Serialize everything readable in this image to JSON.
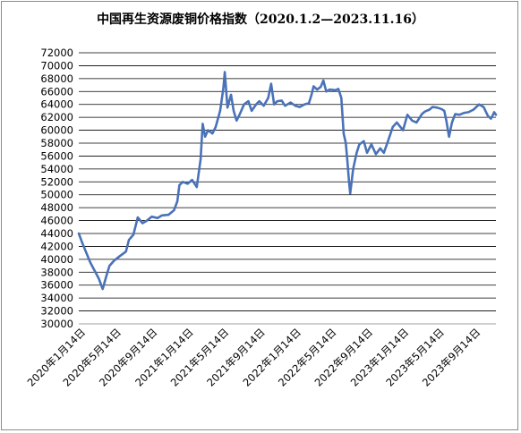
{
  "chart_data": {
    "type": "line",
    "title": "中国再生资源废铜价格指数（2020.1.2—2023.11.16）",
    "xlabel": "",
    "ylabel": "",
    "ylim": [
      30000,
      72000
    ],
    "yticks": [
      30000,
      32000,
      34000,
      36000,
      38000,
      40000,
      42000,
      44000,
      46000,
      48000,
      50000,
      52000,
      54000,
      56000,
      58000,
      60000,
      62000,
      64000,
      66000,
      68000,
      70000,
      72000
    ],
    "xlim": [
      "2020-01-02",
      "2023-11-16"
    ],
    "xticks": [
      {
        "date": "2020-01-14",
        "label": "2020年1月14日"
      },
      {
        "date": "2020-05-14",
        "label": "2020年5月14日"
      },
      {
        "date": "2020-09-14",
        "label": "2020年9月14日"
      },
      {
        "date": "2021-01-14",
        "label": "2021年1月14日"
      },
      {
        "date": "2021-05-14",
        "label": "2021年5月14日"
      },
      {
        "date": "2021-09-14",
        "label": "2021年9月14日"
      },
      {
        "date": "2022-01-14",
        "label": "2022年1月14日"
      },
      {
        "date": "2022-05-14",
        "label": "2022年5月14日"
      },
      {
        "date": "2022-09-14",
        "label": "2022年9月14日"
      },
      {
        "date": "2023-01-14",
        "label": "2023年1月14日"
      },
      {
        "date": "2023-05-14",
        "label": "2023年5月14日"
      },
      {
        "date": "2023-09-14",
        "label": "2023年9月14日"
      }
    ],
    "grid": true,
    "line_color": "#4a72b8",
    "series": [
      {
        "name": "",
        "points": [
          [
            "2020-01-02",
            44000
          ],
          [
            "2020-01-14",
            42500
          ],
          [
            "2020-02-10",
            39500
          ],
          [
            "2020-03-10",
            37000
          ],
          [
            "2020-03-23",
            35400
          ],
          [
            "2020-04-05",
            37500
          ],
          [
            "2020-04-15",
            39000
          ],
          [
            "2020-05-01",
            39800
          ],
          [
            "2020-05-20",
            40500
          ],
          [
            "2020-06-10",
            41200
          ],
          [
            "2020-06-20",
            43000
          ],
          [
            "2020-07-05",
            43800
          ],
          [
            "2020-07-20",
            46500
          ],
          [
            "2020-08-05",
            45600
          ],
          [
            "2020-08-20",
            46000
          ],
          [
            "2020-09-05",
            46600
          ],
          [
            "2020-09-25",
            46400
          ],
          [
            "2020-10-10",
            46800
          ],
          [
            "2020-11-01",
            46900
          ],
          [
            "2020-11-20",
            47600
          ],
          [
            "2020-12-01",
            49000
          ],
          [
            "2020-12-08",
            51500
          ],
          [
            "2020-12-20",
            52000
          ],
          [
            "2021-01-05",
            51700
          ],
          [
            "2021-01-20",
            52300
          ],
          [
            "2021-02-05",
            51200
          ],
          [
            "2021-02-18",
            55500
          ],
          [
            "2021-02-25",
            61000
          ],
          [
            "2021-03-05",
            59000
          ],
          [
            "2021-03-15",
            60000
          ],
          [
            "2021-03-30",
            59500
          ],
          [
            "2021-04-10",
            60500
          ],
          [
            "2021-04-25",
            63000
          ],
          [
            "2021-05-06",
            66500
          ],
          [
            "2021-05-11",
            69000
          ],
          [
            "2021-05-20",
            63500
          ],
          [
            "2021-06-01",
            65500
          ],
          [
            "2021-06-10",
            63000
          ],
          [
            "2021-06-20",
            61500
          ],
          [
            "2021-07-01",
            62500
          ],
          [
            "2021-07-15",
            64000
          ],
          [
            "2021-07-30",
            64500
          ],
          [
            "2021-08-10",
            63000
          ],
          [
            "2021-08-25",
            64000
          ],
          [
            "2021-09-05",
            64500
          ],
          [
            "2021-09-20",
            63800
          ],
          [
            "2021-10-05",
            65000
          ],
          [
            "2021-10-15",
            67200
          ],
          [
            "2021-10-25",
            64000
          ],
          [
            "2021-11-05",
            64500
          ],
          [
            "2021-11-20",
            64600
          ],
          [
            "2021-12-01",
            63800
          ],
          [
            "2021-12-20",
            64300
          ],
          [
            "2022-01-05",
            63800
          ],
          [
            "2022-01-20",
            63600
          ],
          [
            "2022-02-05",
            64000
          ],
          [
            "2022-02-20",
            64200
          ],
          [
            "2022-03-01",
            65500
          ],
          [
            "2022-03-08",
            66800
          ],
          [
            "2022-03-20",
            66300
          ],
          [
            "2022-04-01",
            66700
          ],
          [
            "2022-04-10",
            67700
          ],
          [
            "2022-04-20",
            66000
          ],
          [
            "2022-05-01",
            66300
          ],
          [
            "2022-05-20",
            66200
          ],
          [
            "2022-05-31",
            66400
          ],
          [
            "2022-06-10",
            65000
          ],
          [
            "2022-06-18",
            59500
          ],
          [
            "2022-06-25",
            58000
          ],
          [
            "2022-07-01",
            55000
          ],
          [
            "2022-07-06",
            52000
          ],
          [
            "2022-07-10",
            50200
          ],
          [
            "2022-07-20",
            54000
          ],
          [
            "2022-08-01",
            56500
          ],
          [
            "2022-08-10",
            57800
          ],
          [
            "2022-08-25",
            58300
          ],
          [
            "2022-09-05",
            56500
          ],
          [
            "2022-09-20",
            57800
          ],
          [
            "2022-10-05",
            56300
          ],
          [
            "2022-10-20",
            57200
          ],
          [
            "2022-11-01",
            56500
          ],
          [
            "2022-11-15",
            58300
          ],
          [
            "2022-12-01",
            60500
          ],
          [
            "2022-12-15",
            61200
          ],
          [
            "2023-01-05",
            60000
          ],
          [
            "2023-01-20",
            62400
          ],
          [
            "2023-02-05",
            61500
          ],
          [
            "2023-02-20",
            61200
          ],
          [
            "2023-03-10",
            62500
          ],
          [
            "2023-03-20",
            62900
          ],
          [
            "2023-04-05",
            63200
          ],
          [
            "2023-04-15",
            63600
          ],
          [
            "2023-05-01",
            63500
          ],
          [
            "2023-05-15",
            63300
          ],
          [
            "2023-05-25",
            63000
          ],
          [
            "2023-06-01",
            61500
          ],
          [
            "2023-06-10",
            59000
          ],
          [
            "2023-06-20",
            61200
          ],
          [
            "2023-07-01",
            62500
          ],
          [
            "2023-07-15",
            62400
          ],
          [
            "2023-08-01",
            62700
          ],
          [
            "2023-08-15",
            62800
          ],
          [
            "2023-09-01",
            63200
          ],
          [
            "2023-09-20",
            64000
          ],
          [
            "2023-10-05",
            63600
          ],
          [
            "2023-10-20",
            62200
          ],
          [
            "2023-10-30",
            61800
          ],
          [
            "2023-11-05",
            62300
          ],
          [
            "2023-11-10",
            62800
          ],
          [
            "2023-11-16",
            62400
          ]
        ]
      }
    ]
  }
}
